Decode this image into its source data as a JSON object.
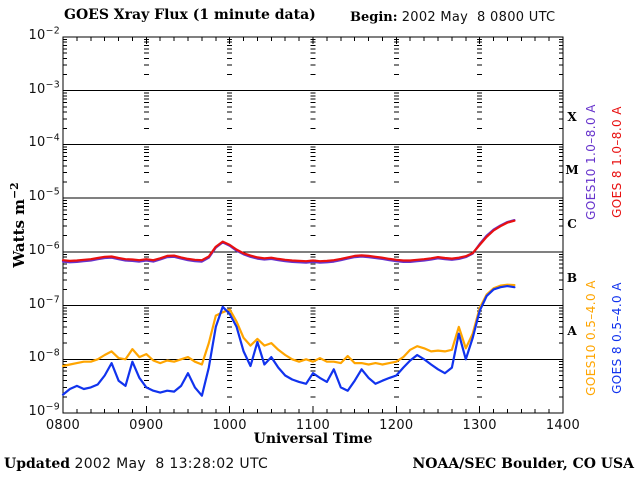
{
  "header": {
    "title": "GOES Xray Flux (1 minute data)",
    "begin_label": "Begin:",
    "begin_value": "2002 May  8 0800 UTC"
  },
  "footer": {
    "updated_label": "Updated",
    "updated_value": "2002 May  8 13:28:02 UTC",
    "credit": "NOAA/SEC Boulder, CO USA"
  },
  "colors": {
    "goes10_long": "#6633cc",
    "goes8_long": "#e81010",
    "goes10_short": "#ffa500",
    "goes8_short": "#1133ee",
    "grid": "#000000",
    "background": "#ffffff"
  },
  "chart_data": {
    "type": "line",
    "title": "GOES Xray Flux (1 minute data)",
    "xlabel": "Universal Time",
    "y_axis_title": {
      "text": "Watts m",
      "exp": "−2"
    },
    "x_axis": {
      "ticks": [
        "0800",
        "0900",
        "1000",
        "1100",
        "1200",
        "1300",
        "1400"
      ],
      "minor_tick_minutes": 10,
      "range_minutes": [
        0,
        360
      ]
    },
    "y_axis": {
      "scale": "log",
      "tick_exponents": [
        -2,
        -3,
        -4,
        -5,
        -6,
        -7,
        -8,
        -9
      ],
      "ylim": [
        1e-09,
        0.01
      ]
    },
    "grid": {
      "horizontal_solid_decades": [
        -3,
        -4,
        -5,
        -6,
        -7,
        -8
      ],
      "vertical_dashed_hours": [
        1,
        2,
        3,
        4,
        5
      ]
    },
    "flare_classes": [
      {
        "label": "X",
        "midexp": -3.5
      },
      {
        "label": "M",
        "midexp": -4.5
      },
      {
        "label": "C",
        "midexp": -5.5
      },
      {
        "label": "B",
        "midexp": -6.5
      },
      {
        "label": "A",
        "midexp": -7.5
      }
    ],
    "legend": [
      {
        "id": "goes10-long",
        "label": "GOES10 1.0–8.0 A",
        "color": "#6633cc",
        "col": 0,
        "row": 0
      },
      {
        "id": "goes8-long",
        "label": "GOES 8 1.0–8.0 A",
        "color": "#e81010",
        "col": 1,
        "row": 0
      },
      {
        "id": "goes10-short",
        "label": "GOES10 0.5–4.0 A",
        "color": "#ffa500",
        "col": 0,
        "row": 1
      },
      {
        "id": "goes8-short",
        "label": "GOES 8 0.5–4.0 A",
        "color": "#1133ee",
        "col": 1,
        "row": 1
      }
    ],
    "series": [
      {
        "id": "goes10-long",
        "name": "GOES10 1.0-8.0 A",
        "color": "#6633cc",
        "width": 2.2,
        "points": [
          [
            0,
            6.6e-07
          ],
          [
            5,
            6.4e-07
          ],
          [
            10,
            6.5e-07
          ],
          [
            15,
            6.7e-07
          ],
          [
            20,
            6.9e-07
          ],
          [
            25,
            7.3e-07
          ],
          [
            30,
            7.7e-07
          ],
          [
            35,
            7.8e-07
          ],
          [
            40,
            7.3e-07
          ],
          [
            45,
            6.9e-07
          ],
          [
            50,
            6.8e-07
          ],
          [
            55,
            6.6e-07
          ],
          [
            60,
            6.9e-07
          ],
          [
            65,
            6.6e-07
          ],
          [
            70,
            7.2e-07
          ],
          [
            75,
            8e-07
          ],
          [
            80,
            8.1e-07
          ],
          [
            85,
            7.5e-07
          ],
          [
            90,
            7e-07
          ],
          [
            95,
            6.7e-07
          ],
          [
            100,
            6.6e-07
          ],
          [
            105,
            7.8e-07
          ],
          [
            110,
            1.2e-06
          ],
          [
            115,
            1.5e-06
          ],
          [
            120,
            1.3e-06
          ],
          [
            125,
            1.05e-06
          ],
          [
            130,
            9e-07
          ],
          [
            135,
            8.1e-07
          ],
          [
            140,
            7.5e-07
          ],
          [
            145,
            7.2e-07
          ],
          [
            150,
            7.4e-07
          ],
          [
            155,
            7e-07
          ],
          [
            160,
            6.7e-07
          ],
          [
            165,
            6.5e-07
          ],
          [
            170,
            6.4e-07
          ],
          [
            175,
            6.3e-07
          ],
          [
            180,
            6.5e-07
          ],
          [
            185,
            6.3e-07
          ],
          [
            190,
            6.4e-07
          ],
          [
            195,
            6.6e-07
          ],
          [
            200,
            7e-07
          ],
          [
            205,
            7.5e-07
          ],
          [
            210,
            8e-07
          ],
          [
            215,
            8.2e-07
          ],
          [
            220,
            8e-07
          ],
          [
            225,
            7.7e-07
          ],
          [
            230,
            7.4e-07
          ],
          [
            235,
            7e-07
          ],
          [
            240,
            6.7e-07
          ],
          [
            245,
            6.5e-07
          ],
          [
            250,
            6.5e-07
          ],
          [
            255,
            6.7e-07
          ],
          [
            260,
            6.9e-07
          ],
          [
            265,
            7.2e-07
          ],
          [
            270,
            7.6e-07
          ],
          [
            275,
            7.3e-07
          ],
          [
            280,
            7.1e-07
          ],
          [
            285,
            7.4e-07
          ],
          [
            290,
            8e-07
          ],
          [
            295,
            9.3e-07
          ],
          [
            300,
            1.4e-06
          ],
          [
            305,
            2e-06
          ],
          [
            310,
            2.6e-06
          ],
          [
            315,
            3.1e-06
          ],
          [
            320,
            3.6e-06
          ],
          [
            325,
            3.9e-06
          ]
        ]
      },
      {
        "id": "goes8-long",
        "name": "GOES 8 1.0-8.0 A",
        "color": "#e81010",
        "width": 2.2,
        "points": [
          [
            0,
            7e-07
          ],
          [
            5,
            6.8e-07
          ],
          [
            10,
            6.9e-07
          ],
          [
            15,
            7.1e-07
          ],
          [
            20,
            7.3e-07
          ],
          [
            25,
            7.7e-07
          ],
          [
            30,
            8.1e-07
          ],
          [
            35,
            8.2e-07
          ],
          [
            40,
            7.7e-07
          ],
          [
            45,
            7.3e-07
          ],
          [
            50,
            7.2e-07
          ],
          [
            55,
            7e-07
          ],
          [
            60,
            7.3e-07
          ],
          [
            65,
            7e-07
          ],
          [
            70,
            7.6e-07
          ],
          [
            75,
            8.4e-07
          ],
          [
            80,
            8.5e-07
          ],
          [
            85,
            7.9e-07
          ],
          [
            90,
            7.4e-07
          ],
          [
            95,
            7.1e-07
          ],
          [
            100,
            7e-07
          ],
          [
            105,
            8.2e-07
          ],
          [
            110,
            1.25e-06
          ],
          [
            115,
            1.55e-06
          ],
          [
            120,
            1.35e-06
          ],
          [
            125,
            1.1e-06
          ],
          [
            130,
            9.4e-07
          ],
          [
            135,
            8.5e-07
          ],
          [
            140,
            7.9e-07
          ],
          [
            145,
            7.6e-07
          ],
          [
            150,
            7.8e-07
          ],
          [
            155,
            7.4e-07
          ],
          [
            160,
            7.1e-07
          ],
          [
            165,
            6.9e-07
          ],
          [
            170,
            6.8e-07
          ],
          [
            175,
            6.7e-07
          ],
          [
            180,
            6.9e-07
          ],
          [
            185,
            6.7e-07
          ],
          [
            190,
            6.8e-07
          ],
          [
            195,
            7e-07
          ],
          [
            200,
            7.4e-07
          ],
          [
            205,
            7.9e-07
          ],
          [
            210,
            8.4e-07
          ],
          [
            215,
            8.6e-07
          ],
          [
            220,
            8.4e-07
          ],
          [
            225,
            8.1e-07
          ],
          [
            230,
            7.8e-07
          ],
          [
            235,
            7.4e-07
          ],
          [
            240,
            7.1e-07
          ],
          [
            245,
            6.9e-07
          ],
          [
            250,
            6.9e-07
          ],
          [
            255,
            7.1e-07
          ],
          [
            260,
            7.3e-07
          ],
          [
            265,
            7.6e-07
          ],
          [
            270,
            8e-07
          ],
          [
            275,
            7.7e-07
          ],
          [
            280,
            7.5e-07
          ],
          [
            285,
            7.8e-07
          ],
          [
            290,
            8.3e-07
          ],
          [
            295,
            9.5e-07
          ],
          [
            300,
            1.35e-06
          ],
          [
            305,
            1.9e-06
          ],
          [
            310,
            2.5e-06
          ],
          [
            315,
            3e-06
          ],
          [
            320,
            3.5e-06
          ],
          [
            325,
            3.8e-06
          ]
        ]
      },
      {
        "id": "goes10-short",
        "name": "GOES10 0.5-4.0 A",
        "color": "#ffa500",
        "width": 2.2,
        "points": [
          [
            0,
            7.5e-09
          ],
          [
            5,
            8e-09
          ],
          [
            10,
            8.5e-09
          ],
          [
            15,
            9e-09
          ],
          [
            20,
            9e-09
          ],
          [
            25,
            1e-08
          ],
          [
            30,
            1.2e-08
          ],
          [
            35,
            1.4e-08
          ],
          [
            40,
            1.05e-08
          ],
          [
            45,
            1e-08
          ],
          [
            50,
            1.55e-08
          ],
          [
            55,
            1.1e-08
          ],
          [
            60,
            1.25e-08
          ],
          [
            65,
            9.5e-09
          ],
          [
            70,
            8.5e-09
          ],
          [
            75,
            9.5e-09
          ],
          [
            80,
            9e-09
          ],
          [
            85,
            1e-08
          ],
          [
            90,
            1.1e-08
          ],
          [
            95,
            9e-09
          ],
          [
            100,
            8e-09
          ],
          [
            105,
            2e-08
          ],
          [
            110,
            6.5e-08
          ],
          [
            115,
            7.5e-08
          ],
          [
            120,
            8.5e-08
          ],
          [
            125,
            5e-08
          ],
          [
            130,
            2.5e-08
          ],
          [
            135,
            1.8e-08
          ],
          [
            140,
            2.4e-08
          ],
          [
            145,
            1.8e-08
          ],
          [
            150,
            2e-08
          ],
          [
            155,
            1.5e-08
          ],
          [
            160,
            1.2e-08
          ],
          [
            165,
            1e-08
          ],
          [
            170,
            9e-09
          ],
          [
            175,
            1e-08
          ],
          [
            180,
            9e-09
          ],
          [
            185,
            1.05e-08
          ],
          [
            190,
            9e-09
          ],
          [
            195,
            9e-09
          ],
          [
            200,
            8.5e-09
          ],
          [
            205,
            1.15e-08
          ],
          [
            210,
            8.5e-09
          ],
          [
            215,
            8.5e-09
          ],
          [
            220,
            8e-09
          ],
          [
            225,
            8.5e-09
          ],
          [
            230,
            8e-09
          ],
          [
            235,
            8.5e-09
          ],
          [
            240,
            9e-09
          ],
          [
            245,
            1.1e-08
          ],
          [
            250,
            1.5e-08
          ],
          [
            255,
            1.75e-08
          ],
          [
            260,
            1.6e-08
          ],
          [
            265,
            1.4e-08
          ],
          [
            270,
            1.45e-08
          ],
          [
            275,
            1.4e-08
          ],
          [
            280,
            1.5e-08
          ],
          [
            285,
            4e-08
          ],
          [
            290,
            1.6e-08
          ],
          [
            295,
            3e-08
          ],
          [
            300,
            9e-08
          ],
          [
            305,
            1.6e-07
          ],
          [
            310,
            2.1e-07
          ],
          [
            315,
            2.35e-07
          ],
          [
            320,
            2.45e-07
          ],
          [
            325,
            2.4e-07
          ]
        ]
      },
      {
        "id": "goes8-short",
        "name": "GOES 8 0.5-4.0 A",
        "color": "#1133ee",
        "width": 2.2,
        "points": [
          [
            0,
            2.2e-09
          ],
          [
            5,
            2.8e-09
          ],
          [
            10,
            3.2e-09
          ],
          [
            15,
            2.8e-09
          ],
          [
            20,
            3e-09
          ],
          [
            25,
            3.4e-09
          ],
          [
            30,
            5e-09
          ],
          [
            35,
            8.5e-09
          ],
          [
            40,
            4e-09
          ],
          [
            45,
            3.2e-09
          ],
          [
            50,
            9e-09
          ],
          [
            55,
            4.5e-09
          ],
          [
            60,
            3e-09
          ],
          [
            65,
            2.6e-09
          ],
          [
            70,
            2.4e-09
          ],
          [
            75,
            2.6e-09
          ],
          [
            80,
            2.5e-09
          ],
          [
            85,
            3.2e-09
          ],
          [
            90,
            5.5e-09
          ],
          [
            95,
            3e-09
          ],
          [
            100,
            2.1e-09
          ],
          [
            105,
            7e-09
          ],
          [
            110,
            4e-08
          ],
          [
            115,
            9.5e-08
          ],
          [
            120,
            7e-08
          ],
          [
            125,
            4e-08
          ],
          [
            130,
            1.4e-08
          ],
          [
            135,
            7.5e-09
          ],
          [
            140,
            2.1e-08
          ],
          [
            145,
            8e-09
          ],
          [
            150,
            1.1e-08
          ],
          [
            155,
            7e-09
          ],
          [
            160,
            5e-09
          ],
          [
            165,
            4.2e-09
          ],
          [
            170,
            3.8e-09
          ],
          [
            175,
            3.5e-09
          ],
          [
            180,
            5.5e-09
          ],
          [
            185,
            4.5e-09
          ],
          [
            190,
            3.8e-09
          ],
          [
            195,
            6.5e-09
          ],
          [
            200,
            3e-09
          ],
          [
            205,
            2.6e-09
          ],
          [
            210,
            4e-09
          ],
          [
            215,
            6.5e-09
          ],
          [
            220,
            4.5e-09
          ],
          [
            225,
            3.5e-09
          ],
          [
            230,
            4e-09
          ],
          [
            235,
            4.5e-09
          ],
          [
            240,
            5e-09
          ],
          [
            245,
            7e-09
          ],
          [
            250,
            9.5e-09
          ],
          [
            255,
            1.2e-08
          ],
          [
            260,
            1e-08
          ],
          [
            265,
            8e-09
          ],
          [
            270,
            6.5e-09
          ],
          [
            275,
            5.5e-09
          ],
          [
            280,
            7e-09
          ],
          [
            285,
            3e-08
          ],
          [
            290,
            1e-08
          ],
          [
            295,
            2.5e-08
          ],
          [
            300,
            8e-08
          ],
          [
            305,
            1.5e-07
          ],
          [
            310,
            2e-07
          ],
          [
            315,
            2.2e-07
          ],
          [
            320,
            2.3e-07
          ],
          [
            325,
            2.2e-07
          ]
        ]
      }
    ]
  }
}
